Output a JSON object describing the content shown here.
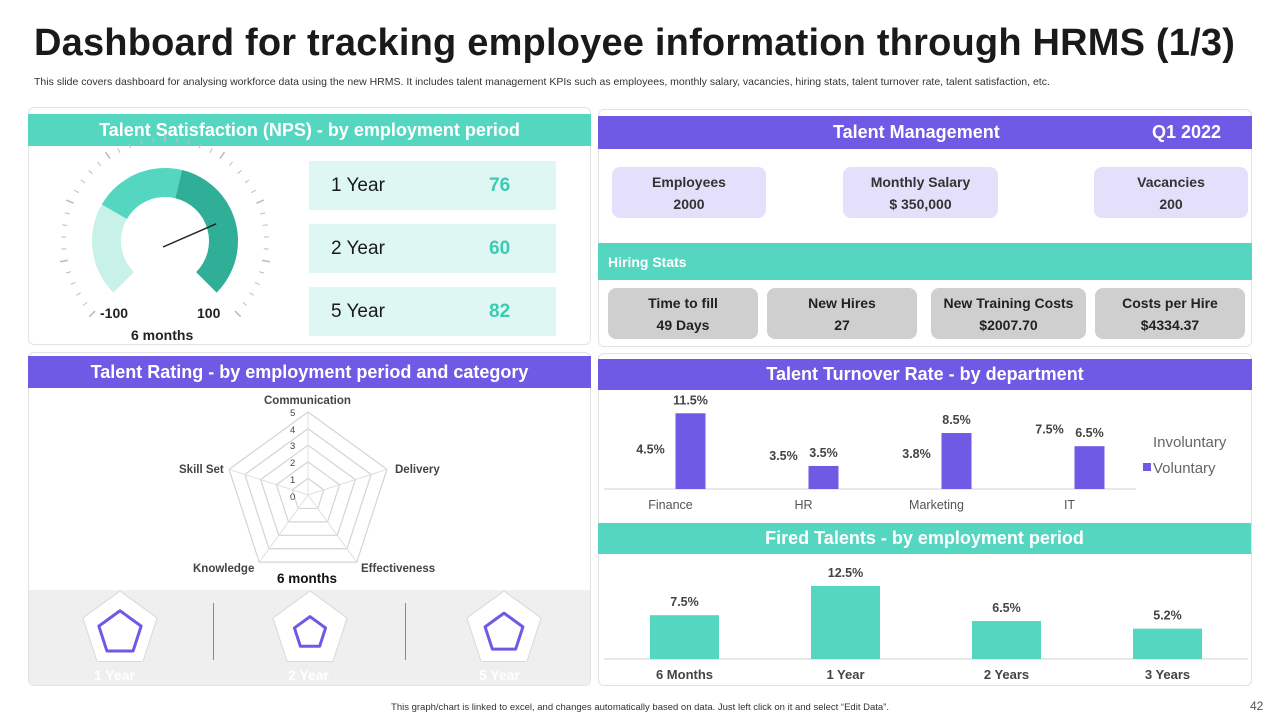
{
  "header": {
    "title": "Dashboard for tracking employee information through HRMS (1/3)",
    "subtitle": "This slide covers dashboard for analysing workforce data using the new HRMS. It includes talent management KPIs such as employees, monthly salary, vacancies, hiring stats, talent turnover rate, talent satisfaction, etc."
  },
  "nps": {
    "title": "Talent Satisfaction (NPS) - by employment period",
    "gauge_min": "-100",
    "gauge_max": "100",
    "gauge_caption": "6 months",
    "rows": [
      {
        "label": "1 Year",
        "value": "76"
      },
      {
        "label": "2 Year",
        "value": "60"
      },
      {
        "label": "5 Year",
        "value": "82"
      }
    ]
  },
  "talent_management": {
    "title": "Talent Management",
    "period": "Q1 2022",
    "kpis": [
      {
        "label": "Employees",
        "value": "2000"
      },
      {
        "label": "Monthly Salary",
        "value": "$ 350,000"
      },
      {
        "label": "Vacancies",
        "value": "200"
      }
    ],
    "hiring_title": "Hiring Stats",
    "hiring": [
      {
        "label": "Time to fill",
        "value": "49 Days"
      },
      {
        "label": "New Hires",
        "value": "27"
      },
      {
        "label": "New Training Costs",
        "value": "$2007.70"
      },
      {
        "label": "Costs per Hire",
        "value": "$4334.37"
      }
    ]
  },
  "rating": {
    "title": "Talent Rating - by employment period and category",
    "caption": "6 months",
    "axes": [
      "Communication",
      "Delivery",
      "Effectiveness",
      "Knowledge",
      "Skill Set"
    ],
    "scale": [
      "5",
      "4",
      "3",
      "2",
      "1",
      "0"
    ],
    "mini_labels": [
      "1 Year",
      "2 Year",
      "5 Year"
    ]
  },
  "footer": {
    "note": "This graph/chart is linked to excel, and changes automatically based on data. Just left click on it and select “Edit Data”.",
    "page": "42"
  },
  "colors": {
    "teal": "#55d6c0",
    "purple": "#6f5ae6",
    "lavender": "#e4e0fb",
    "grey": "#cfcfcf"
  },
  "chart_data": [
    {
      "type": "gauge",
      "title": "Talent Satisfaction (NPS) - by employment period",
      "min": -100,
      "max": 100,
      "value": 76,
      "label": "6 months"
    },
    {
      "type": "radar",
      "title": "Talent Rating - by employment period and category",
      "axes": [
        "Communication",
        "Delivery",
        "Effectiveness",
        "Knowledge",
        "Skill Set"
      ],
      "range": [
        0,
        5
      ],
      "series": [
        {
          "name": "6 months",
          "values": [
            0,
            0,
            0,
            0,
            0
          ]
        }
      ]
    },
    {
      "type": "bar",
      "title": "Talent Turnover Rate - by department",
      "categories": [
        "Finance",
        "HR",
        "Marketing",
        "IT"
      ],
      "series": [
        {
          "name": "Involuntary",
          "values": [
            4.5,
            3.5,
            3.8,
            7.5
          ],
          "labels": [
            "4.5%",
            "3.5%",
            "3.8%",
            "7.5%"
          ]
        },
        {
          "name": "Voluntary",
          "values": [
            11.5,
            3.5,
            8.5,
            6.5
          ],
          "labels": [
            "11.5%",
            "3.5%",
            "8.5%",
            "6.5%"
          ]
        }
      ],
      "ylim": [
        0,
        12
      ]
    },
    {
      "type": "bar",
      "title": "Fired Talents - by employment period",
      "categories": [
        "6 Months",
        "1 Year",
        "2 Years",
        "3 Years"
      ],
      "values": [
        7.5,
        12.5,
        6.5,
        5.2
      ],
      "labels": [
        "7.5%",
        "12.5%",
        "6.5%",
        "5.2%"
      ],
      "ylim": [
        0,
        13
      ]
    }
  ]
}
